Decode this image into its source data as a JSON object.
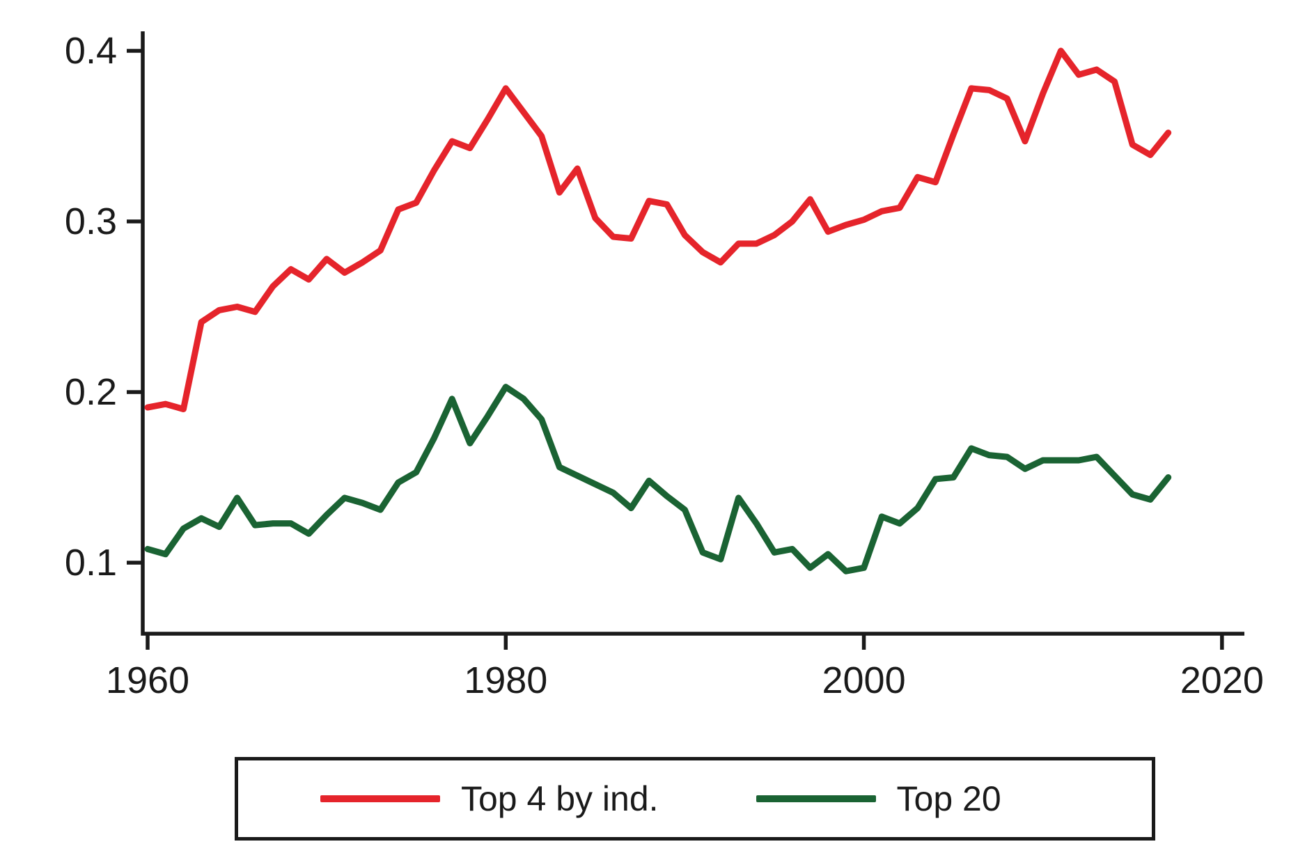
{
  "chart_data": {
    "type": "line",
    "title": "",
    "xlabel": "",
    "ylabel": "",
    "grid": false,
    "legend_position": "bottom-box",
    "x_ticks": [
      1960,
      1980,
      2000,
      2020
    ],
    "y_ticks": [
      {
        "value": 0.1,
        "label": "0.1"
      },
      {
        "value": 0.2,
        "label": "0.2"
      },
      {
        "value": 0.3,
        "label": "0.3"
      },
      {
        "value": 0.4,
        "label": "0.4"
      }
    ],
    "xlim": [
      1959.7,
      2021.3
    ],
    "ylim": [
      0.06,
      0.41
    ],
    "years": [
      1960,
      1961,
      1962,
      1963,
      1964,
      1965,
      1966,
      1967,
      1968,
      1969,
      1970,
      1971,
      1972,
      1973,
      1974,
      1975,
      1976,
      1977,
      1978,
      1979,
      1980,
      1981,
      1982,
      1983,
      1984,
      1985,
      1986,
      1987,
      1988,
      1989,
      1990,
      1991,
      1992,
      1993,
      1994,
      1995,
      1996,
      1997,
      1998,
      1999,
      2000,
      2001,
      2002,
      2003,
      2004,
      2005,
      2006,
      2007,
      2008,
      2009,
      2010,
      2011,
      2012,
      2013,
      2014,
      2015,
      2016,
      2017
    ],
    "series": [
      {
        "name": "Top 4 by ind.",
        "color": "#e5242b",
        "values": [
          0.191,
          0.193,
          0.19,
          0.241,
          0.248,
          0.25,
          0.247,
          0.262,
          0.272,
          0.266,
          0.278,
          0.27,
          0.276,
          0.283,
          0.307,
          0.311,
          0.33,
          0.347,
          0.343,
          0.36,
          0.378,
          0.364,
          0.35,
          0.317,
          0.331,
          0.302,
          0.291,
          0.29,
          0.312,
          0.31,
          0.292,
          0.282,
          0.276,
          0.287,
          0.287,
          0.292,
          0.3,
          0.313,
          0.294,
          0.298,
          0.301,
          0.306,
          0.308,
          0.326,
          0.323,
          0.351,
          0.378,
          0.377,
          0.372,
          0.347,
          0.375,
          0.4,
          0.386,
          0.389,
          0.382,
          0.345,
          0.339,
          0.352
        ]
      },
      {
        "name": "Top 20",
        "color": "#1a6333",
        "values": [
          0.108,
          0.105,
          0.12,
          0.126,
          0.121,
          0.138,
          0.122,
          0.123,
          0.123,
          0.117,
          0.128,
          0.138,
          0.135,
          0.131,
          0.147,
          0.153,
          0.173,
          0.196,
          0.17,
          0.186,
          0.203,
          0.196,
          0.184,
          0.156,
          0.151,
          0.146,
          0.141,
          0.132,
          0.148,
          0.139,
          0.131,
          0.106,
          0.102,
          0.138,
          0.123,
          0.106,
          0.108,
          0.097,
          0.105,
          0.095,
          0.097,
          0.127,
          0.123,
          0.132,
          0.149,
          0.15,
          0.167,
          0.163,
          0.162,
          0.155,
          0.16,
          0.16,
          0.16,
          0.162,
          0.151,
          0.14,
          0.137,
          0.15
        ]
      }
    ]
  }
}
